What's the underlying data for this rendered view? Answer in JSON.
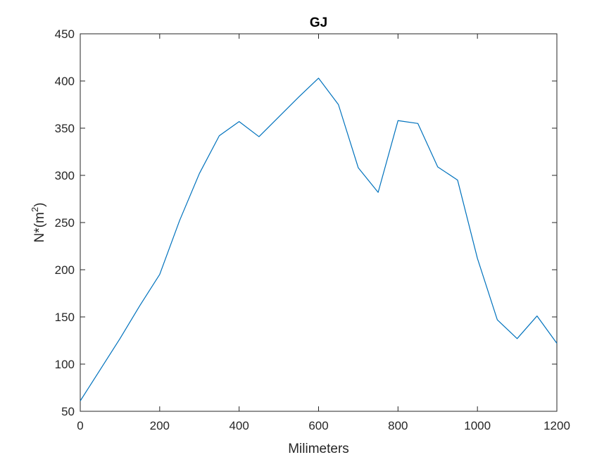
{
  "chart_data": {
    "type": "line",
    "title": "GJ",
    "xlabel": "Milimeters",
    "ylabel_base": "N*(m",
    "ylabel_sup": "2",
    "ylabel_close": ")",
    "xlim": [
      0,
      1200
    ],
    "ylim": [
      50,
      450
    ],
    "xticks": [
      0,
      200,
      400,
      600,
      800,
      1000,
      1200
    ],
    "yticks": [
      50,
      100,
      150,
      200,
      250,
      300,
      350,
      400,
      450
    ],
    "grid": false,
    "box": true,
    "series": [
      {
        "color": "#0072BD",
        "x": [
          0,
          50,
          100,
          150,
          200,
          250,
          300,
          350,
          400,
          450,
          500,
          550,
          600,
          650,
          700,
          750,
          800,
          850,
          900,
          950,
          1000,
          1050,
          1100,
          1150,
          1200
        ],
        "y": [
          61,
          94,
          127,
          162,
          195,
          252,
          302,
          342,
          357,
          341,
          362,
          383,
          403,
          375,
          308,
          282,
          358,
          355,
          309,
          295,
          212,
          147,
          127,
          151,
          122
        ]
      }
    ]
  }
}
